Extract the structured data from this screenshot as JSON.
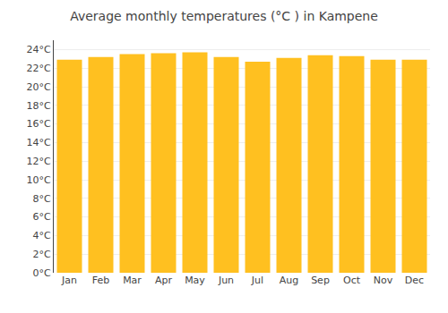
{
  "chart_data": {
    "type": "bar",
    "title": "Average monthly temperatures (°C ) in Kampene",
    "categories": [
      "Jan",
      "Feb",
      "Mar",
      "Apr",
      "May",
      "Jun",
      "Jul",
      "Aug",
      "Sep",
      "Oct",
      "Nov",
      "Dec"
    ],
    "values": [
      22.9,
      23.2,
      23.5,
      23.6,
      23.7,
      23.2,
      22.7,
      23.1,
      23.4,
      23.3,
      22.9,
      22.9
    ],
    "color": "#FFC020",
    "ylim": [
      0,
      25
    ],
    "yticks": [
      {
        "value": 0,
        "label": "0°C"
      },
      {
        "value": 2,
        "label": "2°C"
      },
      {
        "value": 4,
        "label": "4°C"
      },
      {
        "value": 6,
        "label": "6°C"
      },
      {
        "value": 8,
        "label": "8°C"
      },
      {
        "value": 10,
        "label": "10°C"
      },
      {
        "value": 12,
        "label": "12°C"
      },
      {
        "value": 14,
        "label": "14°C"
      },
      {
        "value": 16,
        "label": "16°C"
      },
      {
        "value": 18,
        "label": "18°C"
      },
      {
        "value": 20,
        "label": "20°C"
      },
      {
        "value": 22,
        "label": "22°C"
      },
      {
        "value": 24,
        "label": "24°C"
      }
    ],
    "grid": true
  }
}
